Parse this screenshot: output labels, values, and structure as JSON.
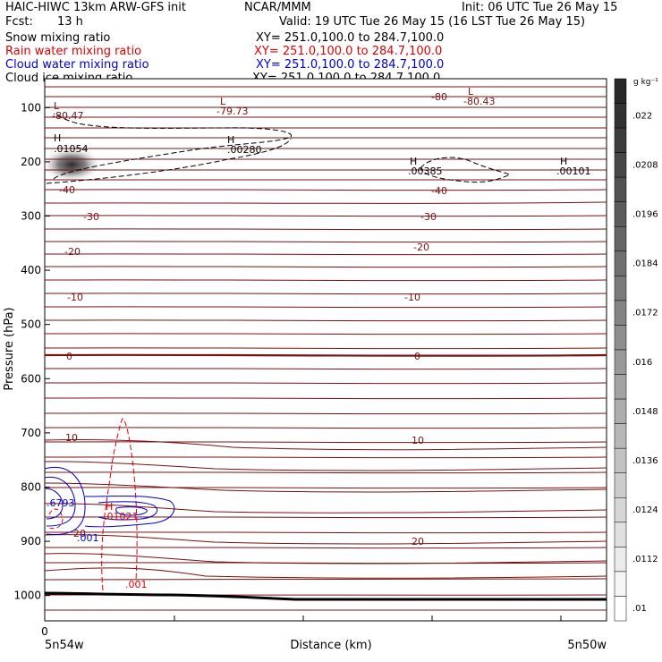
{
  "header": {
    "title": "HAIC-HIWC 13km ARW-GFS init",
    "center": "NCAR/MMM",
    "init": "Init: 06 UTC Tue 26 May 15",
    "fcst_label": "Fcst:",
    "fcst_value": "13 h",
    "valid": "Valid: 19 UTC Tue 26 May 15 (16 LST Tue 26 May 15)"
  },
  "legend": [
    {
      "name": "Snow mixing ratio",
      "xy": "XY= 251.0,100.0 to 284.7,100.0",
      "color": "#000000"
    },
    {
      "name": "Rain water mixing ratio",
      "xy": "XY= 251.0,100.0 to 284.7,100.0",
      "color": "#e00000"
    },
    {
      "name": "Cloud water mixing ratio",
      "xy": "XY= 251.0,100.0 to 284.7,100.0",
      "color": "#0000cc"
    },
    {
      "name": "Cloud ice mixing ratio",
      "xy": "XY= 251.0,100.0 to 284.7,100.0",
      "color": "#000000"
    }
  ],
  "chart_data": {
    "type": "contour",
    "xlabel": "Distance (km)",
    "ylabel": "Pressure (hPa)",
    "x_origin_label": "0",
    "x_left_label": "5n54w",
    "x_right_label": "5n50w",
    "y_ticks": [
      100,
      200,
      300,
      400,
      500,
      600,
      700,
      800,
      900,
      1000
    ],
    "ylim": [
      1050,
      50
    ],
    "colorbar": {
      "units": "g kg⁻¹",
      "labels": [
        ".022",
        ".0208",
        ".0196",
        ".0184",
        ".0172",
        ".016",
        ".0148",
        ".0136",
        ".0124",
        ".0112",
        ".01"
      ]
    },
    "temperature_contours": [
      {
        "value": "-80",
        "pressure": 93,
        "side": "right"
      },
      {
        "value": "-40",
        "pressure": 235,
        "side": "both"
      },
      {
        "value": "-30",
        "pressure": 303,
        "side": "both"
      },
      {
        "value": "-20",
        "pressure": 355,
        "side": "both"
      },
      {
        "value": "-10",
        "pressure": 462,
        "side": "both"
      },
      {
        "value": "0",
        "pressure": 560,
        "side": "both"
      },
      {
        "value": "10",
        "pressure": 712,
        "side": "both"
      },
      {
        "value": "20",
        "pressure": 890,
        "side": "both"
      }
    ],
    "extrema": [
      {
        "kind": "L",
        "value": "-80.47",
        "color": "#7a1010"
      },
      {
        "kind": "L",
        "value": "-79.73",
        "color": "#7a1010"
      },
      {
        "kind": "L",
        "value": "-80.43",
        "color": "#7a1010"
      },
      {
        "kind": "H",
        "value": ".01054",
        "color": "#000000"
      },
      {
        "kind": "H",
        "value": ".00280",
        "color": "#000000"
      },
      {
        "kind": "H",
        "value": ".00385",
        "color": "#000000"
      },
      {
        "kind": "H",
        "value": ".00101",
        "color": "#000000"
      },
      {
        "kind": "H",
        "value": ".01021",
        "color": "#e00000"
      }
    ],
    "contour_labels": [
      {
        "value": ".001",
        "color": "#e00000"
      },
      {
        "value": ".001",
        "color": "#0000cc"
      },
      {
        "value": ".6793",
        "color": "#0000cc"
      },
      {
        "value": "20",
        "color": "#7a1010"
      }
    ]
  }
}
